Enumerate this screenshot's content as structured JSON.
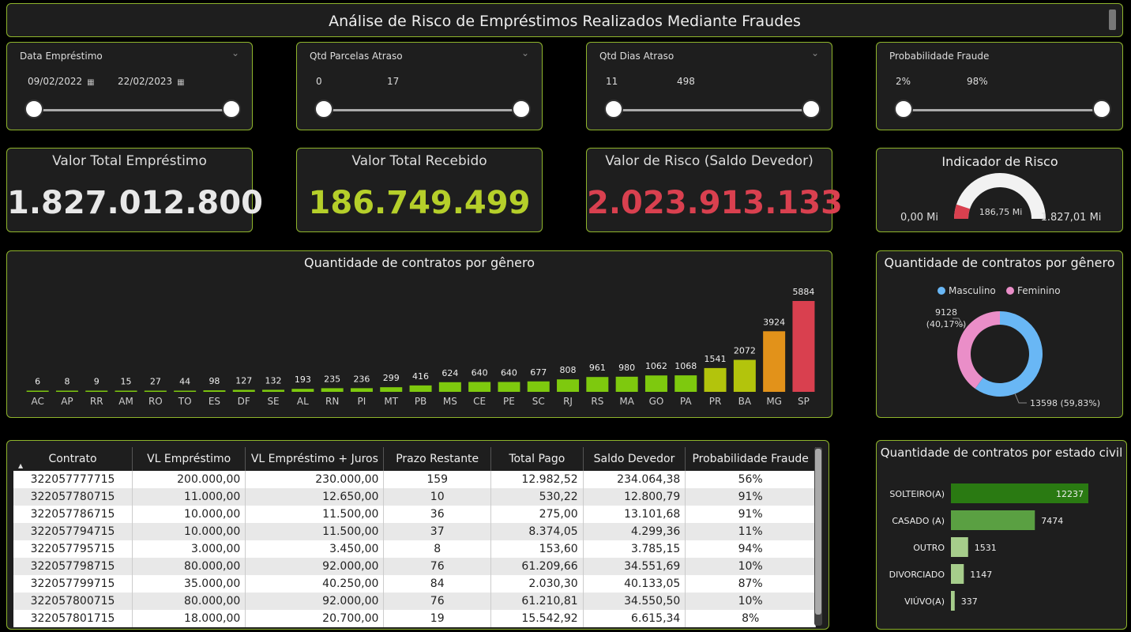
{
  "header": {
    "title": "Análise de Risco de Empréstimos Realizados Mediante Fraudes"
  },
  "slicers": [
    {
      "label": "Data Empréstimo",
      "from": "09/02/2022",
      "to": "22/02/2023",
      "calendar_icon": "calendar-icon"
    },
    {
      "label": "Qtd Parcelas Atraso",
      "from": "0",
      "to": "17"
    },
    {
      "label": "Qtd Dias Atraso",
      "from": "11",
      "to": "498"
    },
    {
      "label": "Probabilidade Fraude",
      "from": "2%",
      "to": "98%"
    }
  ],
  "kpis": [
    {
      "title": "Valor Total Empréstimo",
      "value": "1.827.012.800",
      "color": "#e8e8e8"
    },
    {
      "title": "Valor Total Recebido",
      "value": "186.749.499",
      "color": "#b5cf2a"
    },
    {
      "title": "Valor de Risco (Saldo Devedor)",
      "value": "2.023.913.133",
      "color": "#d9404f"
    }
  ],
  "gauge": {
    "title": "Indicador de Risco",
    "min_label": "0,00 Mi",
    "value_label": "186,75 Mi",
    "max_label": "1.827,01 Mi",
    "min": 0,
    "value": 186.75,
    "max": 1827.01,
    "fill_color": "#d9404f",
    "track_color": "#f2f2f2"
  },
  "chart_data": [
    {
      "type": "bar",
      "title": "Quantidade de contratos por gênero",
      "categories": [
        "AC",
        "AP",
        "RR",
        "AM",
        "RO",
        "TO",
        "ES",
        "DF",
        "SE",
        "AL",
        "RN",
        "PI",
        "MT",
        "PB",
        "MS",
        "CE",
        "PE",
        "SC",
        "RJ",
        "RS",
        "MA",
        "GO",
        "PA",
        "PR",
        "BA",
        "MG",
        "SP"
      ],
      "values": [
        6,
        8,
        9,
        15,
        27,
        44,
        98,
        127,
        132,
        193,
        235,
        236,
        299,
        416,
        624,
        640,
        640,
        677,
        808,
        961,
        980,
        1062,
        1068,
        1541,
        2072,
        3924,
        5884
      ],
      "color_scale": [
        "#7ec90e",
        "#b3c40c",
        "#e2921a",
        "#d9404f"
      ]
    },
    {
      "type": "pie",
      "title": "Quantidade de contratos por gênero",
      "legend_position": "top",
      "series": [
        {
          "name": "Masculino",
          "value": 13598,
          "label": "13598 (59,83%)",
          "color": "#69b7f5"
        },
        {
          "name": "Feminino",
          "value": 9128,
          "label": "9128\n(40,17%)",
          "color": "#ea8ec8"
        }
      ]
    },
    {
      "type": "bar",
      "orientation": "horizontal",
      "title": "Quantidade de contratos por estado civil",
      "categories": [
        "SOLTEIRO(A)",
        "CASADO (A)",
        "OUTRO",
        "DIVORCIADO",
        "VIÚVO(A)"
      ],
      "values": [
        12237,
        7474,
        1531,
        1147,
        337
      ],
      "colors": [
        "#2a7a12",
        "#5aa042",
        "#a6cd8b",
        "#a6cd8b",
        "#a6cd8b"
      ]
    }
  ],
  "table": {
    "columns": [
      "Contrato",
      "VL Empréstimo",
      "VL Empréstimo + Juros",
      "Prazo Restante",
      "Total Pago",
      "Saldo Devedor",
      "Probabilidade Fraude"
    ],
    "sort_icon": "sort-ascending-icon",
    "rows": [
      [
        "322057777715",
        "200.000,00",
        "230.000,00",
        "159",
        "12.982,52",
        "234.064,38",
        "56%"
      ],
      [
        "322057780715",
        "11.000,00",
        "12.650,00",
        "10",
        "530,22",
        "12.800,79",
        "91%"
      ],
      [
        "322057786715",
        "10.000,00",
        "11.500,00",
        "36",
        "275,00",
        "13.101,68",
        "91%"
      ],
      [
        "322057794715",
        "10.000,00",
        "11.500,00",
        "37",
        "8.374,05",
        "4.299,36",
        "11%"
      ],
      [
        "322057795715",
        "3.000,00",
        "3.450,00",
        "8",
        "153,60",
        "3.785,15",
        "94%"
      ],
      [
        "322057798715",
        "80.000,00",
        "92.000,00",
        "76",
        "61.209,66",
        "34.551,69",
        "10%"
      ],
      [
        "322057799715",
        "35.000,00",
        "40.250,00",
        "84",
        "2.030,30",
        "40.133,05",
        "87%"
      ],
      [
        "322057800715",
        "80.000,00",
        "92.000,00",
        "76",
        "61.210,81",
        "34.550,50",
        "10%"
      ],
      [
        "322057801715",
        "18.000,00",
        "20.700,00",
        "19",
        "15.542,92",
        "6.615,34",
        "8%"
      ]
    ]
  }
}
